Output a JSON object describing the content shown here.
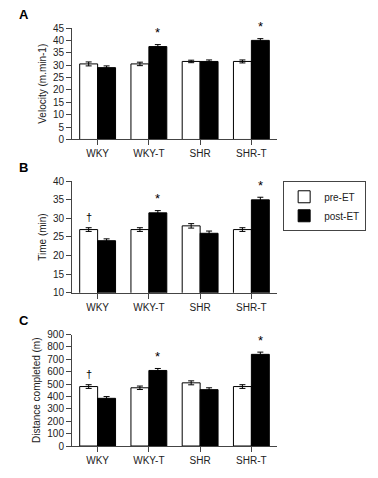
{
  "chart_data": [
    {
      "type": "bar",
      "title": "A",
      "ylabel": "Velocity (m.min-1)",
      "categories": [
        "WKY",
        "WKY-T",
        "SHR",
        "SHR-T"
      ],
      "series": [
        {
          "name": "pre-ET",
          "color": "white",
          "values": [
            30.5,
            30.5,
            31.5,
            31.5
          ],
          "errors": [
            0.8,
            0.7,
            0.5,
            0.6
          ]
        },
        {
          "name": "post-ET",
          "color": "black",
          "values": [
            29.0,
            37.5,
            31.5,
            40.0
          ],
          "errors": [
            0.7,
            0.8,
            0.6,
            0.7
          ],
          "annotations": [
            null,
            "*",
            null,
            "*"
          ]
        }
      ],
      "ylim": [
        0,
        45
      ],
      "yticks": [
        0,
        5,
        10,
        15,
        20,
        25,
        30,
        35,
        40,
        45
      ],
      "grid": false
    },
    {
      "type": "bar",
      "title": "B",
      "ylabel": "Time (min)",
      "categories": [
        "WKY",
        "WKY-T",
        "SHR",
        "SHR-T"
      ],
      "series": [
        {
          "name": "pre-ET",
          "color": "white",
          "values": [
            27.0,
            27.0,
            28.0,
            27.0
          ],
          "errors": [
            0.5,
            0.5,
            0.6,
            0.5
          ],
          "annotations": [
            "†",
            null,
            null,
            null
          ]
        },
        {
          "name": "post-ET",
          "color": "black",
          "values": [
            24.0,
            31.5,
            26.0,
            35.0
          ],
          "errors": [
            0.5,
            0.6,
            0.6,
            0.7
          ],
          "annotations": [
            null,
            "*",
            null,
            "*"
          ]
        }
      ],
      "ylim": [
        10,
        40
      ],
      "yticks": [
        10,
        15,
        20,
        25,
        30,
        35,
        40
      ],
      "grid": false,
      "legend": "right"
    },
    {
      "type": "bar",
      "title": "C",
      "ylabel": "Distance completed (m)",
      "categories": [
        "WKY",
        "WKY-T",
        "SHR",
        "SHR-T"
      ],
      "series": [
        {
          "name": "pre-ET",
          "color": "white",
          "values": [
            480,
            470,
            510,
            480
          ],
          "errors": [
            15,
            14,
            16,
            15
          ],
          "annotations": [
            "†",
            null,
            null,
            null
          ]
        },
        {
          "name": "post-ET",
          "color": "black",
          "values": [
            385,
            610,
            455,
            740
          ],
          "errors": [
            14,
            16,
            15,
            18
          ],
          "annotations": [
            null,
            "*",
            null,
            "*"
          ]
        }
      ],
      "ylim": [
        0,
        900
      ],
      "yticks": [
        0,
        100,
        200,
        300,
        400,
        500,
        600,
        700,
        800,
        900
      ],
      "grid": false
    }
  ]
}
